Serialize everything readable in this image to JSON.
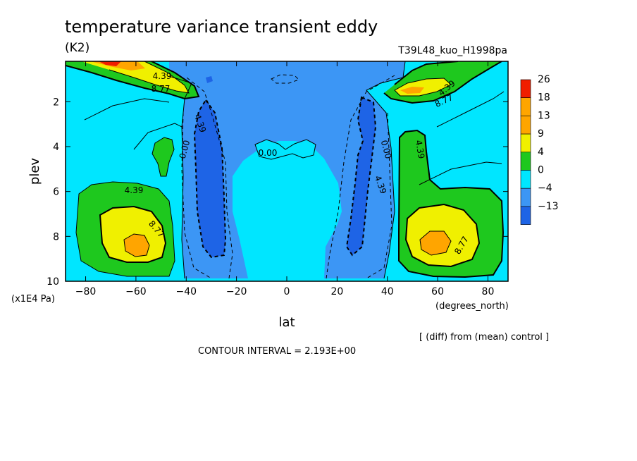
{
  "title": "temperature variance transient eddy",
  "units": "(K2)",
  "run_label": "T39L48_kuo_H1998pa",
  "xlabel": "lat",
  "ylabel": "plev",
  "xunits": "(degrees_north)",
  "yunits": "(x1E4 Pa)",
  "diff_note": "[ (diff) from (mean) control ]",
  "contour_interval": "CONTOUR INTERVAL = 2.193E+00",
  "colors": {
    "c_neg13": "#1e64e6",
    "c_neg4": "#3c96f5",
    "c_0": "#00e6ff",
    "c_4": "#1ec81e",
    "c_9": "#f0f000",
    "c_13": "#ffa500",
    "c_18": "#ffa500",
    "c_26": "#f01e00"
  },
  "chart_data": {
    "type": "contour",
    "xlim": [
      -88,
      88
    ],
    "ylim": [
      10,
      0.2
    ],
    "xticks": [
      -80,
      -60,
      -40,
      -20,
      0,
      20,
      40,
      60,
      80
    ],
    "yticks": [
      2,
      4,
      6,
      8,
      10
    ],
    "colorbar_levels": [
      "26",
      "18",
      "13",
      "9",
      "4",
      "0",
      "-4",
      "-13"
    ],
    "contour_labels": [
      "4.39",
      "8.77",
      "4.39",
      "0.00",
      "0.00",
      "0.00",
      "4.39",
      "4.39",
      "8.77",
      "4.39",
      "8.77",
      "4.39",
      "8.77"
    ]
  }
}
